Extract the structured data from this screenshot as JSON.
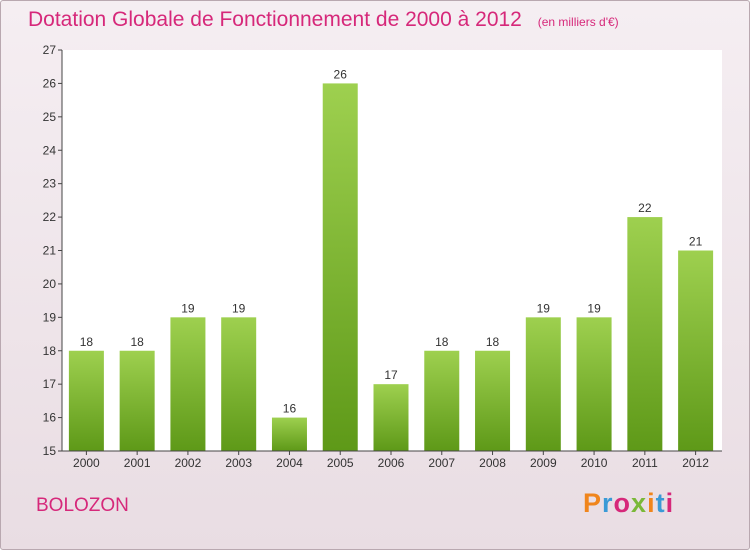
{
  "header": {
    "title": "Dotation Globale de Fonctionnement de 2000 à 2012",
    "subtitle": "(en milliers d'€)"
  },
  "footer": {
    "commune": "BOLOZON",
    "brand": "Proxiti",
    "brand_colors": [
      "#f0851c",
      "#3a9ad6",
      "#d6287a",
      "#7ab838",
      "#f0851c",
      "#3a9ad6",
      "#d6287a"
    ]
  },
  "colors": {
    "accent": "#d6287a",
    "bar_light": "#9ed04f",
    "bar_dark": "#5e9918"
  },
  "chart_data": {
    "type": "bar",
    "categories": [
      "2000",
      "2001",
      "2002",
      "2003",
      "2004",
      "2005",
      "2006",
      "2007",
      "2008",
      "2009",
      "2010",
      "2011",
      "2012"
    ],
    "values": [
      18,
      18,
      19,
      19,
      16,
      26,
      17,
      18,
      18,
      19,
      19,
      22,
      21
    ],
    "title": "Dotation Globale de Fonctionnement de 2000 à 2012",
    "subtitle": "(en milliers d'€)",
    "xlabel": "",
    "ylabel": "",
    "ylim": [
      15,
      27
    ],
    "yticks": [
      15,
      16,
      17,
      18,
      19,
      20,
      21,
      22,
      23,
      24,
      25,
      26,
      27
    ],
    "grid": false,
    "data_labels": true
  }
}
